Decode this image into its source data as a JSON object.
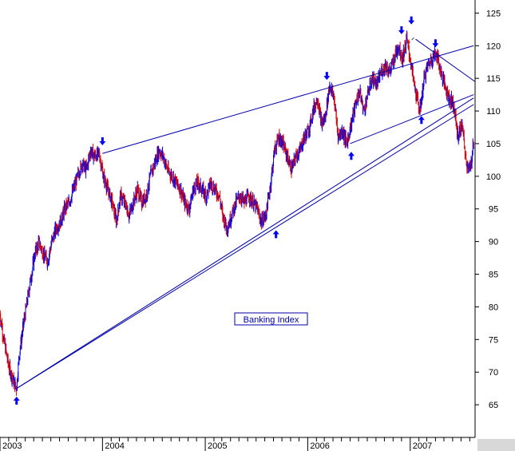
{
  "chart_data": {
    "type": "line",
    "legend": "Banking Index",
    "legend_placement": "center-bottom",
    "grid": false,
    "ylim": [
      60,
      127
    ],
    "yticks": [
      "125",
      "120",
      "115",
      "110",
      "105",
      "100",
      "95",
      "90",
      "85",
      "80",
      "75",
      "70",
      "65"
    ],
    "ytick_values": [
      125,
      120,
      115,
      110,
      105,
      100,
      95,
      90,
      85,
      80,
      75,
      70,
      65
    ],
    "xlim": [
      "2003-01-01",
      "2007-08-20"
    ],
    "xticks": [
      "2003",
      "2004",
      "2005",
      "2006",
      "2007"
    ],
    "xtick_dates": [
      "2003-01-01",
      "2004-01-01",
      "2005-01-01",
      "2006-01-01",
      "2007-01-01"
    ],
    "colors": {
      "up": "#0000ee",
      "down": "#dd0000",
      "trendline": "#0000aa",
      "arrow": "#0000ff",
      "axis": "#000000"
    },
    "series": [
      {
        "x": [
          "2003-01-01",
          "2003-01-15",
          "2003-02-01",
          "2003-02-15",
          "2003-03-01",
          "2003-03-12",
          "2003-03-25",
          "2003-04-05",
          "2003-04-20",
          "2003-05-05",
          "2003-05-20",
          "2003-06-05",
          "2003-06-20",
          "2003-07-05",
          "2003-07-20",
          "2003-08-05",
          "2003-08-20",
          "2003-09-05",
          "2003-09-20",
          "2003-10-05",
          "2003-10-20",
          "2003-11-05",
          "2003-11-20",
          "2003-12-05",
          "2003-12-20",
          "2004-01-05",
          "2004-01-20",
          "2004-02-05",
          "2004-02-20",
          "2004-03-05",
          "2004-03-20",
          "2004-04-05",
          "2004-04-20",
          "2004-05-05",
          "2004-05-20",
          "2004-06-05",
          "2004-06-20",
          "2004-07-05",
          "2004-07-20",
          "2004-08-05",
          "2004-08-20",
          "2004-09-05",
          "2004-09-20",
          "2004-10-05",
          "2004-10-20",
          "2004-11-05",
          "2004-11-20",
          "2004-12-05",
          "2004-12-20",
          "2005-01-05",
          "2005-01-20",
          "2005-02-05",
          "2005-02-20",
          "2005-03-05",
          "2005-03-20",
          "2005-04-05",
          "2005-04-20",
          "2005-05-05",
          "2005-05-20",
          "2005-06-05",
          "2005-06-20",
          "2005-07-05",
          "2005-07-20",
          "2005-08-05",
          "2005-08-20",
          "2005-09-05",
          "2005-09-20",
          "2005-10-05",
          "2005-10-20",
          "2005-11-05",
          "2005-11-20",
          "2005-12-05",
          "2005-12-20",
          "2006-01-05",
          "2006-01-20",
          "2006-02-05",
          "2006-02-20",
          "2006-03-05",
          "2006-03-20",
          "2006-04-05",
          "2006-04-20",
          "2006-05-05",
          "2006-05-20",
          "2006-06-05",
          "2006-06-20",
          "2006-07-05",
          "2006-07-20",
          "2006-08-05",
          "2006-08-20",
          "2006-09-05",
          "2006-09-20",
          "2006-10-05",
          "2006-10-20",
          "2006-11-05",
          "2006-11-20",
          "2006-12-05",
          "2006-12-20",
          "2007-01-05",
          "2007-01-20",
          "2007-02-05",
          "2007-02-20",
          "2007-03-05",
          "2007-03-20",
          "2007-04-05",
          "2007-04-20",
          "2007-05-05",
          "2007-05-20",
          "2007-06-05",
          "2007-06-20",
          "2007-07-05",
          "2007-07-20",
          "2007-08-05",
          "2007-08-15"
        ],
        "values": [
          79,
          75,
          71,
          69,
          67.5,
          73,
          77,
          80,
          84,
          88,
          90,
          88,
          87,
          90,
          92,
          93,
          95,
          96,
          98,
          100,
          102,
          101,
          104,
          103,
          103.5,
          100,
          98,
          96,
          93,
          97,
          96,
          94,
          96,
          98,
          96,
          97,
          100,
          102,
          104,
          103,
          101,
          100,
          99,
          98,
          96,
          95,
          98,
          99,
          98,
          97,
          99,
          98,
          97,
          94,
          92,
          94,
          96,
          97,
          96,
          97,
          96,
          95,
          93,
          94,
          98,
          104,
          106,
          105,
          103,
          101,
          103,
          104,
          106,
          107,
          110,
          112,
          108,
          109,
          114,
          112,
          106,
          107,
          105,
          108,
          111,
          113,
          110,
          113,
          115,
          114,
          116,
          117,
          116,
          118,
          120,
          118,
          121,
          117,
          113,
          110,
          115,
          117,
          118,
          119,
          116,
          114,
          112,
          111,
          106,
          108,
          102,
          101,
          106
        ]
      }
    ],
    "trendlines": [
      {
        "from": [
          "2003-03-01",
          67.5
        ],
        "to": [
          "2007-08-15",
          112
        ]
      },
      {
        "from": [
          "2003-03-01",
          67.5
        ],
        "to": [
          "2007-08-15",
          111
        ]
      },
      {
        "from": [
          "2004-01-01",
          103.5
        ],
        "to": [
          "2007-08-15",
          120
        ]
      },
      {
        "from": [
          "2006-06-01",
          105
        ],
        "to": [
          "2007-08-15",
          112.5
        ]
      },
      {
        "from": [
          "2007-01-20",
          121
        ],
        "to": [
          "2007-08-20",
          114.5
        ]
      },
      {
        "from": [
          "2006-08-10",
          114
        ],
        "to": [
          "2007-01-20",
          121.5
        ],
        "dashed": true
      }
    ],
    "arrows_down": [
      [
        "2004-01-01",
        105
      ],
      [
        "2006-03-10",
        115
      ],
      [
        "2006-12-01",
        122
      ],
      [
        "2007-01-05",
        123.5
      ],
      [
        "2007-04-01",
        120
      ]
    ],
    "arrows_up": [
      [
        "2003-03-01",
        66
      ],
      [
        "2005-09-10",
        91.5
      ],
      [
        "2006-06-05",
        103.5
      ],
      [
        "2007-02-10",
        109
      ]
    ]
  }
}
